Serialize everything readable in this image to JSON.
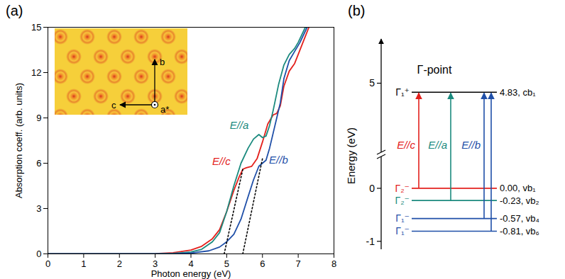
{
  "chart_data": [
    {
      "type": "line",
      "panel_label": "(a)",
      "xlabel": "Photon energy (eV)",
      "ylabel": "Absorption coeff. (arb. units)",
      "xlim": [
        0,
        8
      ],
      "xticks": [
        0,
        1,
        2,
        3,
        4,
        5,
        6,
        7,
        8
      ],
      "ylim": [
        0,
        15
      ],
      "yticks": [
        0,
        3,
        6,
        9,
        12,
        15
      ],
      "grid": false,
      "series": [
        {
          "name": "E//c",
          "color": "#e3201c",
          "label_at": [
            4.85,
            6.1
          ],
          "x": [
            0,
            1,
            2,
            3,
            3.5,
            4,
            4.3,
            4.6,
            4.8,
            5.0,
            5.2,
            5.35,
            5.45,
            5.55,
            5.7,
            5.85,
            6.0,
            6.15,
            6.3,
            6.4,
            6.5,
            6.6,
            6.75,
            6.9,
            7.0,
            7.15,
            7.3
          ],
          "values": [
            0,
            0,
            0,
            0.02,
            0.08,
            0.25,
            0.5,
            1.0,
            1.6,
            2.8,
            4.2,
            5.1,
            5.6,
            5.7,
            5.8,
            6.3,
            7.4,
            8.6,
            9.2,
            9.3,
            9.8,
            11.1,
            12.1,
            12.6,
            13.2,
            14.1,
            15
          ]
        },
        {
          "name": "E//a",
          "color": "#1b8a7e",
          "label_at": [
            5.35,
            8.5
          ],
          "x": [
            0,
            1,
            2,
            3,
            3.5,
            4,
            4.3,
            4.6,
            4.8,
            5.0,
            5.2,
            5.4,
            5.6,
            5.75,
            5.9,
            6.0,
            6.1,
            6.2,
            6.3,
            6.45,
            6.6,
            6.75,
            6.9,
            7.0,
            7.2
          ],
          "values": [
            0,
            0,
            0,
            0,
            0.03,
            0.12,
            0.3,
            0.8,
            1.4,
            2.8,
            4.5,
            6.0,
            7.0,
            7.6,
            7.9,
            7.7,
            7.8,
            8.5,
            9.5,
            11.2,
            12.5,
            13.2,
            13.6,
            14.0,
            15
          ]
        },
        {
          "name": "E//b",
          "color": "#1f4fa8",
          "label_at": [
            6.45,
            6.2
          ],
          "x": [
            0,
            1,
            2,
            3,
            3.5,
            4,
            4.5,
            4.8,
            5.0,
            5.2,
            5.4,
            5.6,
            5.75,
            5.9,
            6.0,
            6.1,
            6.2,
            6.3,
            6.4,
            6.5,
            6.6,
            6.75,
            6.9,
            7.05,
            7.25
          ],
          "values": [
            0,
            0,
            0,
            0,
            0.01,
            0.05,
            0.2,
            0.45,
            0.8,
            1.3,
            2.3,
            3.8,
            4.9,
            5.8,
            6.0,
            6.2,
            7.0,
            8.0,
            9.0,
            10.0,
            11.6,
            12.8,
            13.4,
            14.0,
            15
          ]
        },
        {
          "color": "#000000",
          "line_style": "dotted",
          "x": [
            4.93,
            5.45
          ],
          "values": [
            0,
            5.6
          ]
        },
        {
          "color": "#000000",
          "line_style": "dotted",
          "x": [
            5.45,
            6.0
          ],
          "values": [
            0,
            6.3
          ]
        }
      ],
      "inset": {
        "labels": [
          "b",
          "c",
          "a*"
        ]
      }
    },
    {
      "type": "level_diagram",
      "panel_label": "(b)",
      "title": "Γ-point",
      "ylabel": "Energy (eV)",
      "ylim": [
        -1.15,
        5.7
      ],
      "y_break": [
        0.6,
        3.7
      ],
      "yticks": [
        -1,
        0,
        5
      ],
      "levels": [
        {
          "symbol": "Γ₁⁺",
          "value": 4.83,
          "label": "4.83, cb₁",
          "color": "#000000"
        },
        {
          "symbol": "Γ₂⁻",
          "value": 0.0,
          "label": "0.00, vb₁",
          "color": "#e3201c",
          "transition": "E//c"
        },
        {
          "symbol": "Γ₂⁻",
          "value": -0.23,
          "label": "-0.23, vb₂",
          "color": "#1b8a7e",
          "transition": "E//a"
        },
        {
          "symbol": "Γ₁⁻",
          "value": -0.57,
          "label": "-0.57, vb₄",
          "color": "#1f4fa8",
          "transition": "E//b"
        },
        {
          "symbol": "Γ₁⁻",
          "value": -0.81,
          "label": "-0.81, vb₆",
          "color": "#1f4fa8",
          "transition": "E//b"
        }
      ]
    }
  ]
}
